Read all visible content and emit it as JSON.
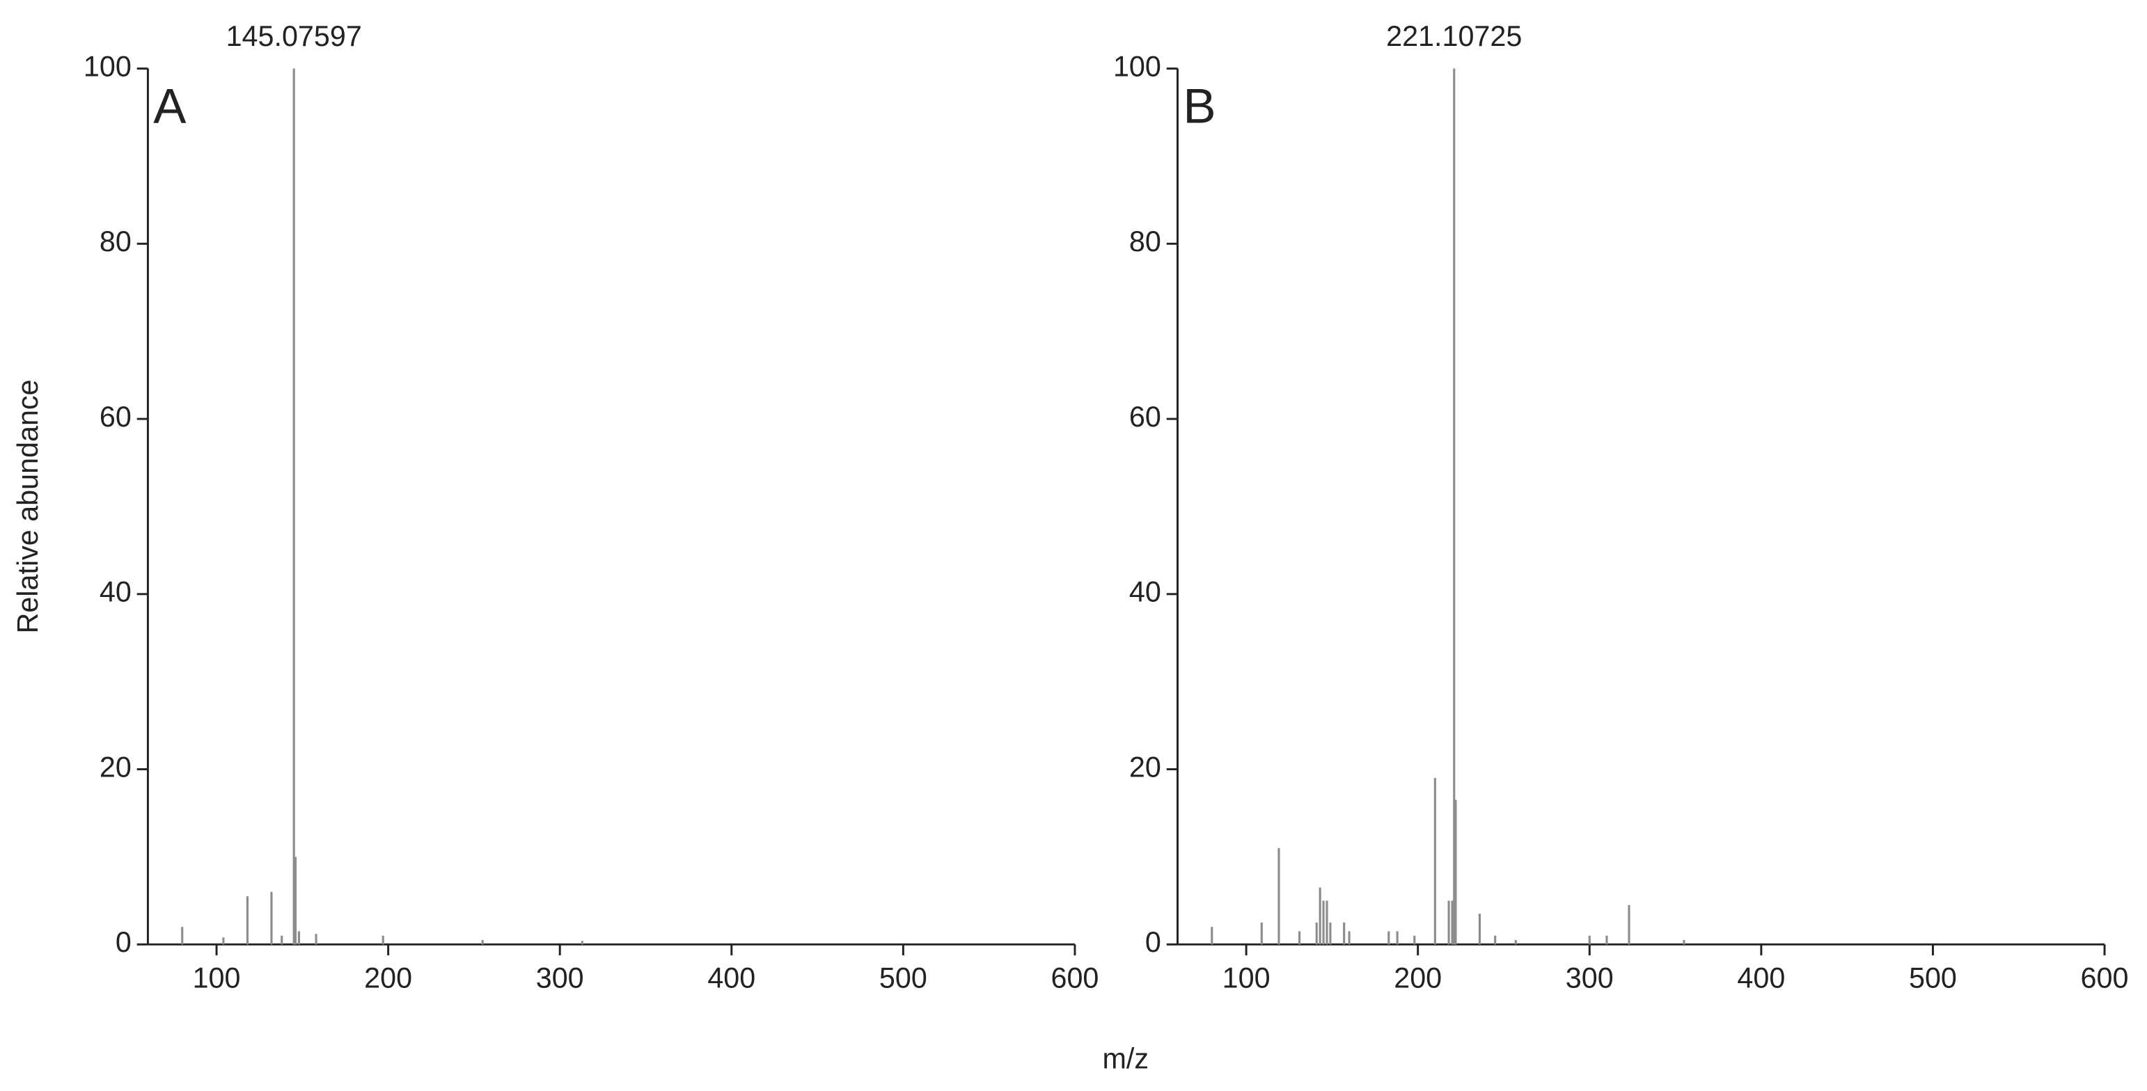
{
  "ylabel": "Relative abundance",
  "xlabel": "m/z",
  "chart_data": [
    {
      "type": "bar",
      "panel": "A",
      "annotation": "145.07597",
      "color": "#8c8c8c",
      "x": [
        80,
        104,
        118,
        132,
        138,
        145.07597,
        146,
        148,
        158,
        197,
        255,
        313
      ],
      "values": [
        2,
        0.8,
        5.5,
        6,
        1,
        100,
        10,
        1.5,
        1.2,
        1,
        0.5,
        0.4
      ],
      "xlim": [
        60,
        600
      ],
      "xticks": [
        100,
        200,
        300,
        400,
        500,
        600
      ],
      "ylim": [
        0,
        100
      ],
      "yticks": [
        0,
        20,
        40,
        60,
        80,
        100
      ]
    },
    {
      "type": "bar",
      "panel": "B",
      "annotation": "221.10725",
      "color": "#8c8c8c",
      "x": [
        80,
        109,
        119,
        131,
        141,
        143,
        145,
        147,
        149,
        157,
        160,
        183,
        188,
        198,
        210,
        218,
        220,
        221.10725,
        222,
        236,
        245,
        257,
        300,
        310,
        323,
        355
      ],
      "values": [
        2,
        2.5,
        11,
        1.5,
        2.5,
        6.5,
        5,
        5,
        2.5,
        2.5,
        1.5,
        1.5,
        1.5,
        1,
        19,
        5,
        5,
        100,
        16.5,
        3.5,
        1,
        0.5,
        1,
        1,
        4.5,
        0.5
      ],
      "xlim": [
        60,
        600
      ],
      "xticks": [
        100,
        200,
        300,
        400,
        500,
        600
      ],
      "ylim": [
        0,
        100
      ],
      "yticks": [
        0,
        20,
        40,
        60,
        80,
        100
      ]
    }
  ]
}
